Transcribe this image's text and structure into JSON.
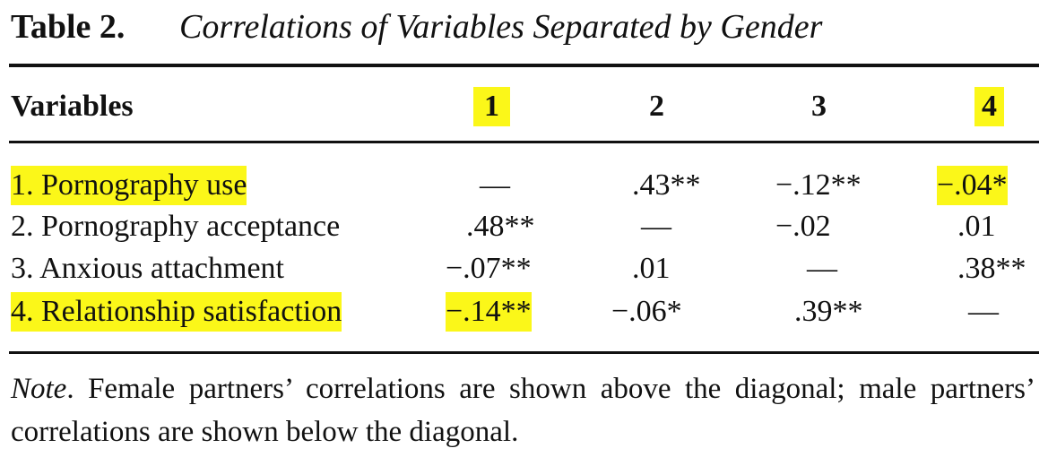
{
  "title": {
    "label": "Table 2.",
    "text": "Correlations of Variables Separated by Gender"
  },
  "table": {
    "header": [
      "Variables",
      "1",
      "2",
      "3",
      "4"
    ],
    "rows": [
      [
        "1. Pornography use",
        "—",
        ".43**",
        "−.12**",
        "−.04*"
      ],
      [
        "2. Pornography acceptance",
        ".48**",
        "—",
        "−.02",
        ".01"
      ],
      [
        "3. Anxious attachment",
        "−.07**",
        ".01",
        "—",
        ".38**"
      ],
      [
        "4. Relationship satisfaction",
        "−.14**",
        "−.06*",
        ".39**",
        "—"
      ]
    ]
  },
  "note": {
    "label": "Note",
    "text": ". Female partners’ correlations are shown above the diagonal; male partners’ correlations are shown below the diagonal."
  }
}
